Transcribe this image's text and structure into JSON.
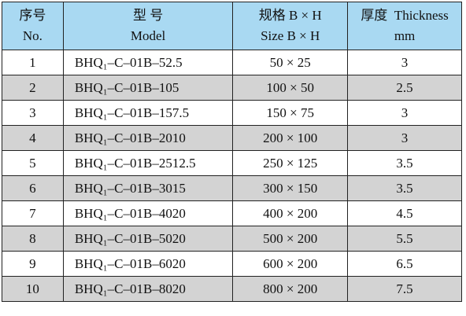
{
  "table": {
    "header": [
      [
        "序号",
        "No."
      ],
      [
        "型 号",
        "Model"
      ],
      [
        "规格 B × H",
        "Size B × H"
      ],
      [
        "厚度  Thickness",
        "mm"
      ]
    ],
    "rows": [
      [
        "1",
        "BHQ₁–C–01B–52.5",
        "50 × 25",
        "3"
      ],
      [
        "2",
        "BHQ₁–C–01B–105",
        "100 × 50",
        "2.5"
      ],
      [
        "3",
        "BHQ₁–C–01B–157.5",
        "150 × 75",
        "3"
      ],
      [
        "4",
        "BHQ₁–C–01B–2010",
        "200 × 100",
        "3"
      ],
      [
        "5",
        "BHQ₁–C–01B–2512.5",
        "250 × 125",
        "3.5"
      ],
      [
        "6",
        "BHQ₁–C–01B–3015",
        "300 × 150",
        "3.5"
      ],
      [
        "7",
        "BHQ₁–C–01B–4020",
        "400 × 200",
        "4.5"
      ],
      [
        "8",
        "BHQ₁–C–01B–5020",
        "500 × 200",
        "5.5"
      ],
      [
        "9",
        "BHQ₁–C–01B–6020",
        "600 × 200",
        "6.5"
      ],
      [
        "10",
        "BHQ₁–C–01B–8020",
        "800 × 200",
        "7.5"
      ]
    ]
  }
}
